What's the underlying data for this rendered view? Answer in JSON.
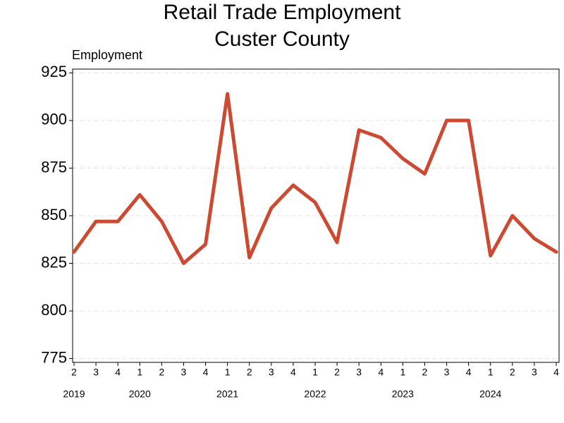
{
  "chart_data": {
    "type": "line",
    "title": "Retail Trade Employment",
    "subtitle": "Custer County",
    "y_label": "Employment",
    "categories": [
      "2",
      "3",
      "4",
      "1",
      "2",
      "3",
      "4",
      "1",
      "2",
      "3",
      "4",
      "1",
      "2",
      "3",
      "4",
      "1",
      "2",
      "3",
      "4",
      "1",
      "2",
      "3",
      "4"
    ],
    "year_labels": [
      "2019",
      null,
      null,
      "2020",
      null,
      null,
      null,
      "2021",
      null,
      null,
      null,
      "2022",
      null,
      null,
      null,
      "2023",
      null,
      null,
      null,
      "2024",
      null,
      null,
      null
    ],
    "series": [
      {
        "name": "Employment",
        "color": "#cc4a32",
        "values": [
          831,
          847,
          847,
          861,
          847,
          825,
          835,
          914,
          828,
          854,
          866,
          857,
          836,
          895,
          891,
          880,
          872,
          900,
          900,
          829,
          850,
          838,
          831
        ]
      }
    ],
    "ylim": [
      773,
      927
    ],
    "yticks": [
      775,
      800,
      825,
      850,
      875,
      900,
      925
    ],
    "grid": true
  }
}
